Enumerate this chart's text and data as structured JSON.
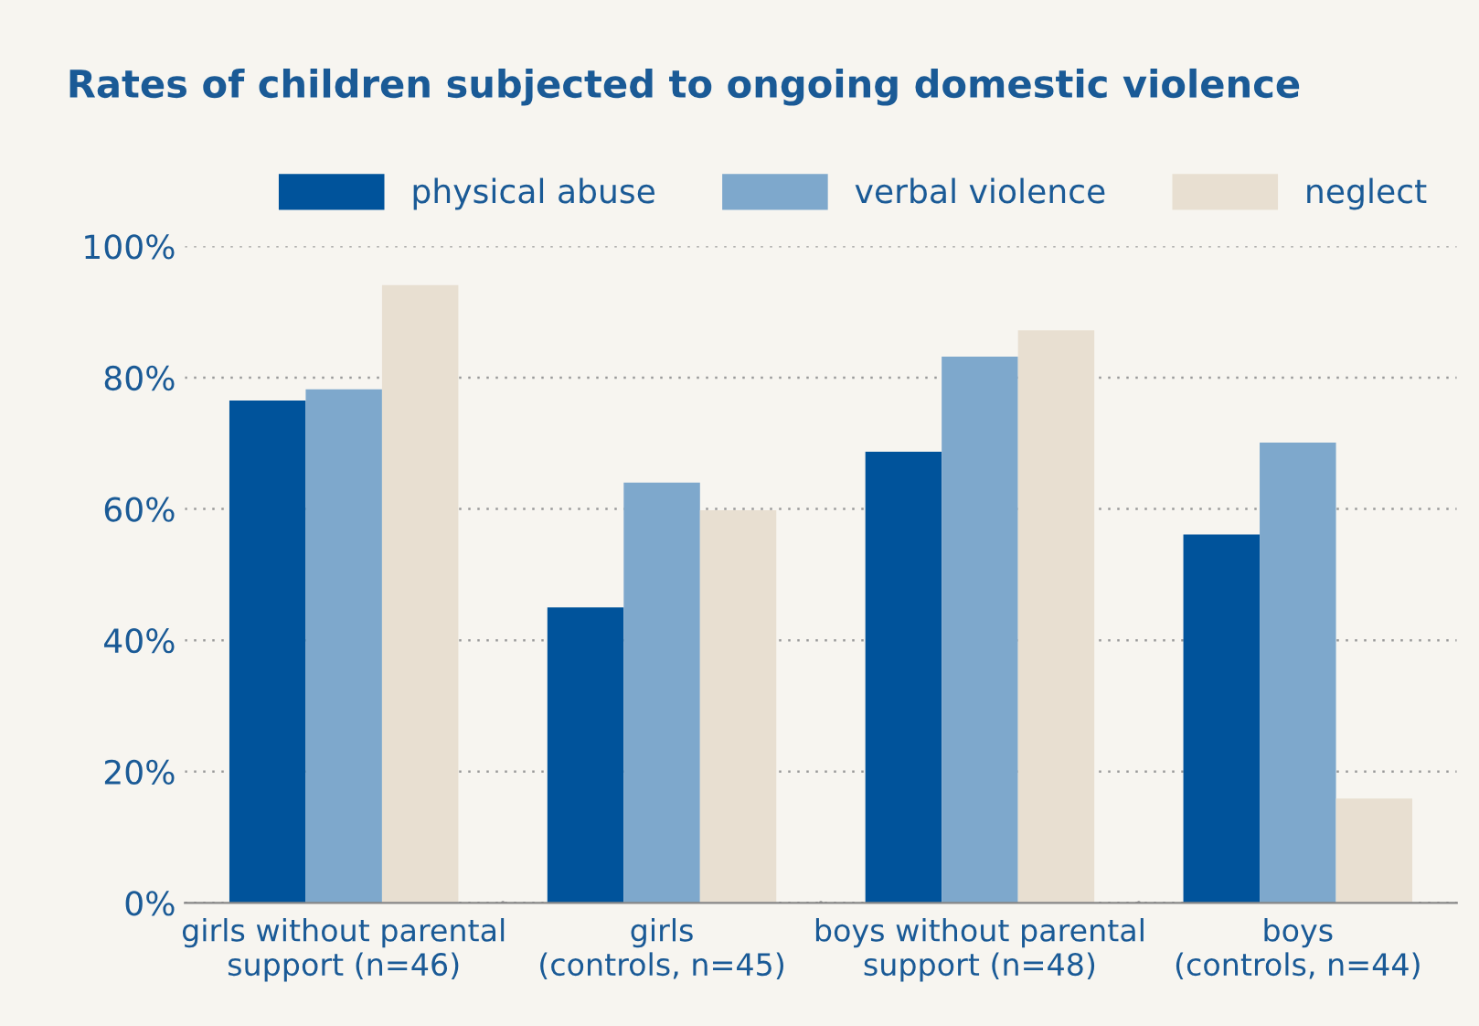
{
  "chart_data": {
    "type": "bar",
    "title": "Rates of children subjected to ongoing domestic violence",
    "categories": [
      "girls without parental\nsupport (n=46)",
      "girls\n(controls, n=45)",
      "boys without parental\nsupport (n=48)",
      "boys\n(controls, n=44)"
    ],
    "series": [
      {
        "name": "physical abuse",
        "color": "#00539b",
        "values": [
          76.5,
          45,
          68.7,
          56.1
        ]
      },
      {
        "name": "verbal violence",
        "color": "#7ea8cc",
        "values": [
          78.2,
          64,
          83.2,
          70.1
        ]
      },
      {
        "name": "neglect",
        "color": "#e8dfd1",
        "values": [
          94.1,
          59.8,
          87.2,
          15.9
        ]
      }
    ],
    "ylim": [
      0,
      100
    ],
    "yticks": [
      {
        "value": 0,
        "label": "0%"
      },
      {
        "value": 20,
        "label": "20%"
      },
      {
        "value": 40,
        "label": "40%"
      },
      {
        "value": 60,
        "label": "60%"
      },
      {
        "value": 80,
        "label": "80%"
      },
      {
        "value": 100,
        "label": "100%"
      }
    ],
    "grid": "y",
    "legend": "top right"
  }
}
